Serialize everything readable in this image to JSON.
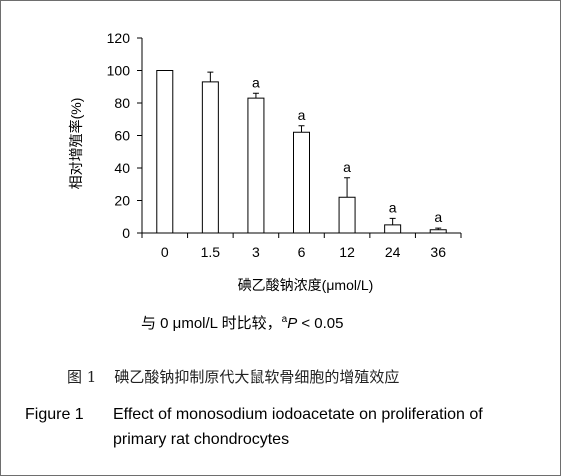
{
  "chart_data": {
    "type": "bar",
    "categories": [
      "0",
      "1.5",
      "3",
      "6",
      "12",
      "24",
      "36"
    ],
    "values": [
      100,
      93,
      83,
      62,
      22,
      5,
      2
    ],
    "errors": [
      0,
      6,
      3,
      4,
      12,
      4,
      1
    ],
    "annotations": [
      "",
      "",
      "a",
      "a",
      "a",
      "a",
      "a"
    ],
    "xlabel": "碘乙酸钠浓度(μmol/L)",
    "ylabel": "相对增殖率(%)",
    "ylim": [
      0,
      120
    ],
    "yticks": [
      0,
      20,
      40,
      60,
      80,
      100,
      120
    ],
    "grid": false,
    "bar_fill": "#ffffff",
    "bar_stroke": "#000000"
  },
  "footnote": {
    "prefix": "与 0 μmol/L 时比较，",
    "sup": "a",
    "p_symbol": "P",
    "suffix": " < 0.05"
  },
  "caption_cn": {
    "number": "图 1",
    "text": "碘乙酸钠抑制原代大鼠软骨细胞的增殖效应"
  },
  "caption_en": {
    "label": "Figure 1",
    "line1": "Effect of monosodium iodoacetate on proliferation of",
    "line2": "primary rat chondrocytes"
  }
}
